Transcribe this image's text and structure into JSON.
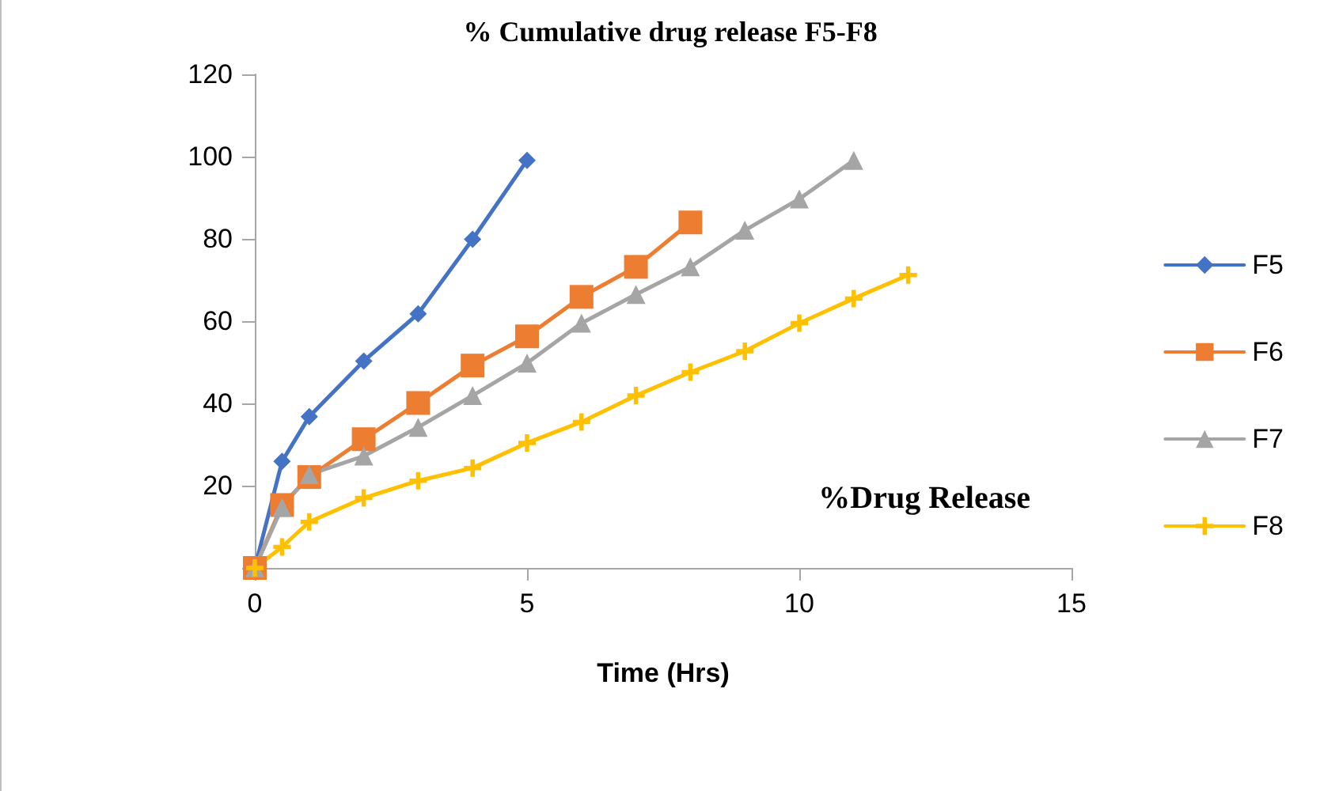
{
  "chart_data": {
    "type": "line",
    "title": "% Cumulative drug release F5-F8",
    "xlabel": "Time (Hrs)",
    "annotations": [
      "%Drug Release"
    ],
    "xlim": [
      0,
      15
    ],
    "xticks": [
      0,
      5,
      10,
      15
    ],
    "ylim": [
      0,
      120
    ],
    "yticks": [
      {
        "value": 0,
        "label": null
      },
      20,
      40,
      60,
      80,
      100,
      120
    ],
    "grid": false,
    "legend": "right",
    "series": [
      {
        "name": "F5",
        "color": "#4472c4",
        "marker": "diamond",
        "x": [
          0,
          0.5,
          1,
          2,
          3,
          4,
          5
        ],
        "values": [
          0,
          25.9,
          36.8,
          50.3,
          61.8,
          79.9,
          99.1
        ]
      },
      {
        "name": "F6",
        "color": "#ed7d31",
        "marker": "square",
        "x": [
          0,
          0.5,
          1,
          2,
          3,
          4,
          5,
          6,
          7,
          8
        ],
        "values": [
          0,
          15.3,
          22.1,
          31.3,
          40.1,
          49.2,
          56.3,
          65.9,
          73.2,
          84.0
        ]
      },
      {
        "name": "F7",
        "color": "#a5a5a5",
        "marker": "triangle",
        "x": [
          0,
          0.5,
          1,
          2,
          3,
          4,
          5,
          6,
          7,
          8,
          9,
          10,
          11
        ],
        "values": [
          0,
          14.7,
          22.7,
          27.2,
          34.2,
          41.9,
          49.8,
          59.5,
          66.5,
          73.2,
          82.1,
          89.7,
          99.1
        ]
      },
      {
        "name": "F8",
        "color": "#ffc000",
        "marker": "cross",
        "x": [
          0,
          0.5,
          1,
          2,
          3,
          4,
          5,
          6,
          7,
          8,
          9,
          10,
          11,
          12
        ],
        "values": [
          0,
          5.1,
          11.2,
          17.0,
          21.2,
          24.3,
          30.4,
          35.5,
          41.9,
          47.6,
          52.7,
          59.5,
          65.5,
          71.2
        ]
      }
    ]
  }
}
